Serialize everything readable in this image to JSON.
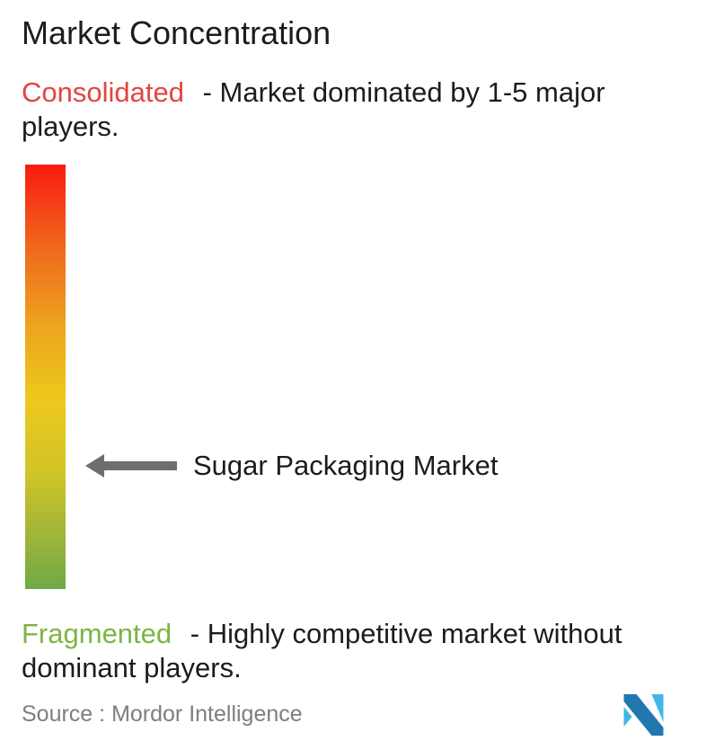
{
  "title": "Market Concentration",
  "consolidated": {
    "label": "Consolidated",
    "color": "#e2453f",
    "description": "- Market dominated by 1-5 major players."
  },
  "fragmented": {
    "label": "Fragmented",
    "color": "#7cb543",
    "description": "- Highly competitive market without dominant players."
  },
  "marker": {
    "label": "Sugar Packaging Market",
    "arrow_color": "#6e6e6e"
  },
  "gradient_bar": {
    "stops": [
      "#fb1b12 0%",
      "#ef6a1c 20%",
      "#eda41e 38%",
      "#edc81c 55%",
      "#d2c526 72%",
      "#9cb53a 88%",
      "#70a945 100%"
    ]
  },
  "footer": {
    "source_prefix": "Source :",
    "source_name": "Mordor Intelligence"
  },
  "logo": {
    "dark_color": "#2277ae",
    "light_color": "#3eb6e8"
  },
  "chart_data": {
    "type": "gauge",
    "title": "Market Concentration",
    "orientation": "vertical",
    "scale_top_label": "Consolidated",
    "scale_top_meaning": "Market dominated by 1-5 major players.",
    "scale_bottom_label": "Fragmented",
    "scale_bottom_meaning": "Highly competitive market without dominant players.",
    "marker_label": "Sugar Packaging Market",
    "marker_position_pct_from_top": 71,
    "source": "Mordor Intelligence"
  }
}
